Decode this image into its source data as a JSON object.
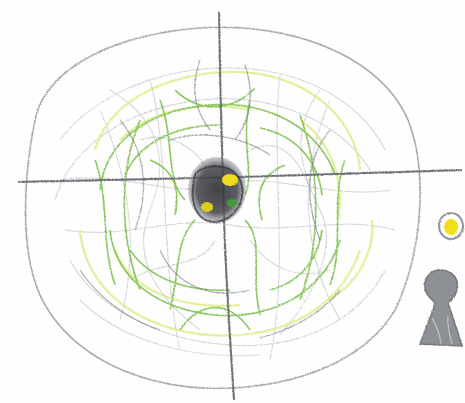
{
  "colors": {
    "paper": "#fefefe",
    "pencil_gray": "#8c8f95",
    "dark_gray": "#55585e",
    "green": "#7fbf4a",
    "yellow_green": "#d8ea7a",
    "yellow": "#f4e21a",
    "center_dark": "#3f4146"
  },
  "drawing": {
    "subject": "crayon-drawing",
    "elements": [
      "outer-circle",
      "crosshair-lines",
      "green-scribble-web",
      "dark-center-spot",
      "small-yellow-dot-icon",
      "gray-keyhole-figure"
    ]
  }
}
